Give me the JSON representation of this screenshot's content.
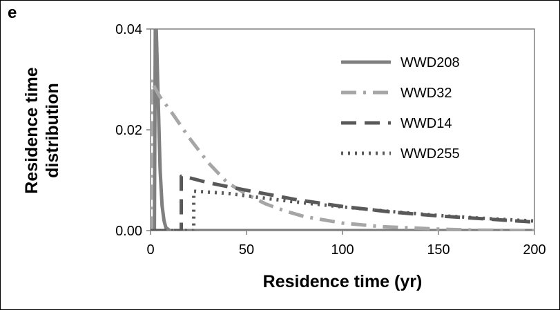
{
  "panel_label": "e",
  "chart_data": {
    "type": "line",
    "xlabel": "Residence time (yr)",
    "ylabel": [
      "Residence time",
      "distribution"
    ],
    "xlim": [
      0,
      200
    ],
    "ylim": [
      0,
      0.04
    ],
    "xticks": [
      0,
      50,
      100,
      150,
      200
    ],
    "xtick_labels": [
      "0",
      "50",
      "100",
      "150",
      "200"
    ],
    "yticks": [
      0,
      0.02,
      0.04
    ],
    "ytick_labels": [
      "0.00",
      "0.02",
      "0.04"
    ],
    "grid": false,
    "legend_position": "top-right",
    "series": [
      {
        "name": "WWD208",
        "color": "#808080",
        "style": "solid",
        "x": [
          0,
          1,
          2,
          2.5,
          3,
          4,
          5,
          6,
          7,
          8,
          10,
          200
        ],
        "y": [
          0,
          0,
          0,
          0.04,
          0.04,
          0.026,
          0.012,
          0.005,
          0.002,
          0.0006,
          0,
          0
        ]
      },
      {
        "name": "WWD32",
        "color": "#a6a6a6",
        "style": "dashdot",
        "x": [
          0,
          0.5,
          0.5,
          2,
          5,
          10,
          20,
          30,
          40,
          50,
          60,
          70,
          80,
          100,
          120,
          150,
          170,
          200
        ],
        "y": [
          0,
          0,
          0.03,
          0.0285,
          0.0265,
          0.024,
          0.0185,
          0.0135,
          0.0095,
          0.0072,
          0.0053,
          0.0039,
          0.0028,
          0.0015,
          0.0008,
          0.0003,
          0.0001,
          0
        ]
      },
      {
        "name": "WWD14",
        "color": "#595959",
        "style": "dashed",
        "x": [
          0,
          16,
          16,
          17,
          30,
          50,
          75,
          100,
          125,
          150,
          175,
          200
        ],
        "y": [
          0,
          0,
          0.0108,
          0.0108,
          0.0095,
          0.008,
          0.0062,
          0.0048,
          0.0037,
          0.0029,
          0.0023,
          0.0017
        ]
      },
      {
        "name": "WWD255",
        "color": "#595959",
        "style": "dotted",
        "x": [
          0,
          22.5,
          22.5,
          23.5,
          40,
          60,
          80,
          100,
          125,
          150,
          175,
          200
        ],
        "y": [
          0,
          0,
          0.0078,
          0.0078,
          0.0074,
          0.0064,
          0.0055,
          0.0047,
          0.0038,
          0.003,
          0.0024,
          0.0019
        ]
      }
    ]
  }
}
